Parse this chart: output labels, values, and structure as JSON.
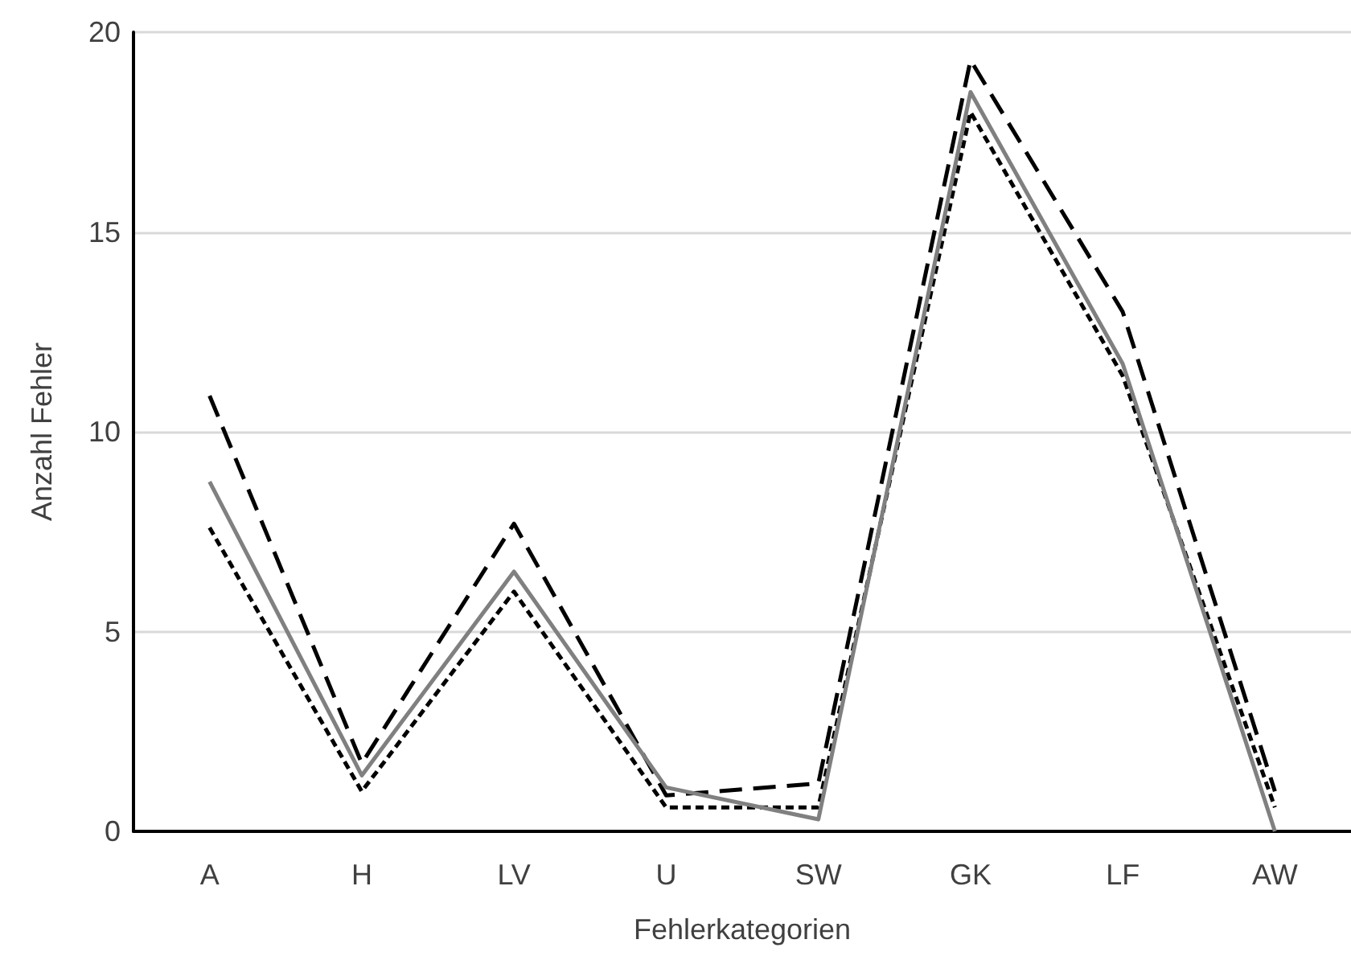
{
  "chart_data": {
    "type": "line",
    "xlabel": "Fehlerkategorien",
    "ylabel": "Anzahl Fehler",
    "categories": [
      "A",
      "H",
      "LV",
      "U",
      "SW",
      "GK",
      "LF",
      "AW"
    ],
    "series": [
      {
        "color": "#000000",
        "line_style": "dashed",
        "values": [
          10.9,
          1.7,
          7.7,
          0.9,
          1.2,
          19.3,
          13.0,
          1.0
        ]
      },
      {
        "color": "#000000",
        "line_style": "dotted",
        "values": [
          7.6,
          1.0,
          6.0,
          0.6,
          0.6,
          18.0,
          11.4,
          0.6
        ]
      },
      {
        "color": "#808080",
        "line_style": "solid",
        "values": [
          8.75,
          1.4,
          6.5,
          1.1,
          0.3,
          18.5,
          11.7,
          0
        ]
      }
    ],
    "ylim": [
      0,
      20
    ],
    "yticks": [
      0,
      5,
      10,
      15,
      20
    ],
    "grid": "y",
    "marker": "none"
  }
}
